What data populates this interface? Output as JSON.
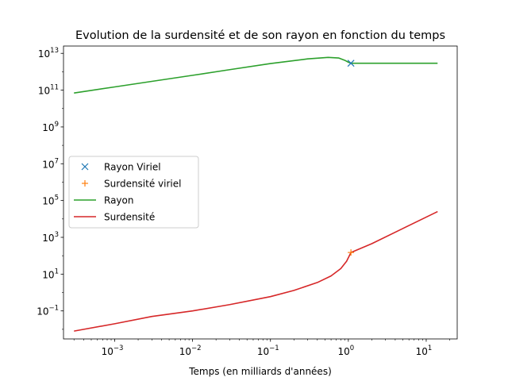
{
  "chart_data": {
    "type": "line",
    "title": "Evolution de la surdensité et de son rayon en fonction du temps",
    "xlabel": "Temps (en milliards d'années)",
    "ylabel": "",
    "xscale": "log",
    "yscale": "log",
    "xlim": [
      0.00022,
      25
    ],
    "ylim": [
      0.003,
      25000000000000
    ],
    "x_major_ticks": [
      0.001,
      0.01,
      0.1,
      1,
      10
    ],
    "x_tick_labels": [
      {
        "base": "10",
        "exp": "−3"
      },
      {
        "base": "10",
        "exp": "−2"
      },
      {
        "base": "10",
        "exp": "−1"
      },
      {
        "base": "10",
        "exp": "0"
      },
      {
        "base": "10",
        "exp": "1"
      }
    ],
    "y_major_ticks": [
      0.1,
      10,
      1000,
      100000,
      10000000,
      1000000000,
      100000000000,
      10000000000000
    ],
    "y_tick_labels": [
      {
        "base": "10",
        "exp": "−1"
      },
      {
        "base": "10",
        "exp": "1"
      },
      {
        "base": "10",
        "exp": "3"
      },
      {
        "base": "10",
        "exp": "5"
      },
      {
        "base": "10",
        "exp": "7"
      },
      {
        "base": "10",
        "exp": "9"
      },
      {
        "base": "10",
        "exp": "11"
      },
      {
        "base": "10",
        "exp": "13"
      }
    ],
    "legend_position": "center-left",
    "series": [
      {
        "name": "Rayon Viriel",
        "kind": "marker",
        "marker": "x",
        "color": "#1f77b4",
        "points": [
          [
            1.08,
            2900000000000
          ]
        ]
      },
      {
        "name": "Surdensité viriel",
        "kind": "marker",
        "marker": "+",
        "color": "#ff7f0e",
        "points": [
          [
            1.08,
            150
          ]
        ]
      },
      {
        "name": "Rayon",
        "kind": "line",
        "color": "#2ca02c",
        "points": [
          [
            0.0003,
            70000000000
          ],
          [
            0.001,
            150000000000
          ],
          [
            0.003,
            300000000000
          ],
          [
            0.01,
            640000000000
          ],
          [
            0.03,
            1300000000000
          ],
          [
            0.1,
            2800000000000
          ],
          [
            0.3,
            5000000000000
          ],
          [
            0.55,
            6000000000000
          ],
          [
            0.75,
            5600000000000
          ],
          [
            0.9,
            4200000000000
          ],
          [
            1.0,
            3300000000000
          ],
          [
            1.08,
            2900000000000
          ],
          [
            2,
            2900000000000
          ],
          [
            5,
            2900000000000
          ],
          [
            14,
            2900000000000
          ]
        ]
      },
      {
        "name": "Surdensité",
        "kind": "line",
        "color": "#d62728",
        "points": [
          [
            0.0003,
            0.008
          ],
          [
            0.001,
            0.02
          ],
          [
            0.003,
            0.05
          ],
          [
            0.01,
            0.1
          ],
          [
            0.03,
            0.22
          ],
          [
            0.1,
            0.6
          ],
          [
            0.2,
            1.3
          ],
          [
            0.4,
            3.5
          ],
          [
            0.6,
            8
          ],
          [
            0.8,
            20
          ],
          [
            0.95,
            50
          ],
          [
            1.08,
            150
          ],
          [
            2,
            450
          ],
          [
            5,
            3000
          ],
          [
            14,
            25000
          ]
        ]
      }
    ]
  }
}
